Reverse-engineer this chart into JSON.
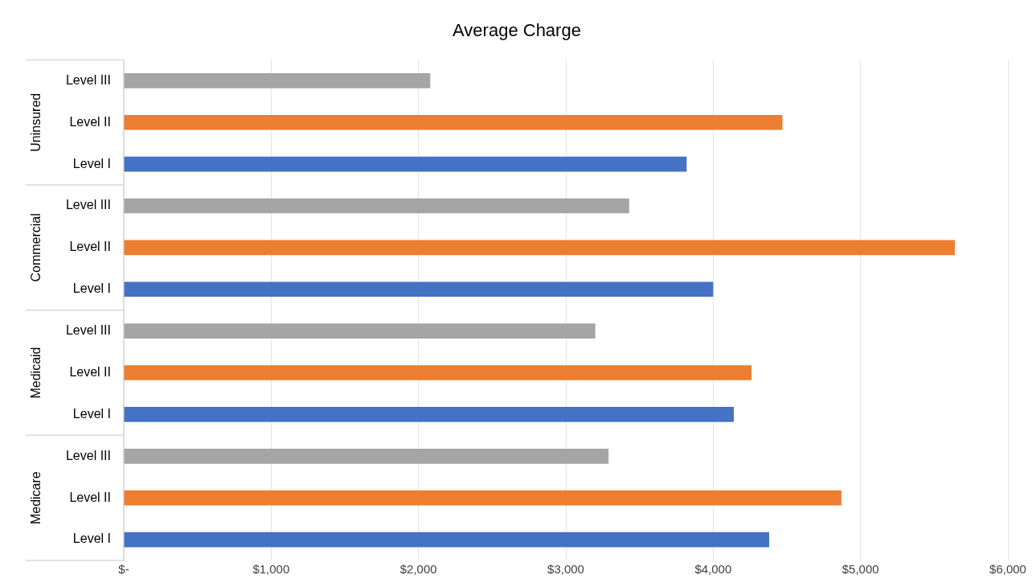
{
  "chart_data": {
    "type": "bar",
    "orientation": "horizontal",
    "title": "Average Charge",
    "categories": [
      "Level III",
      "Level II",
      "Level I",
      "Level III",
      "Level II",
      "Level I",
      "Level III",
      "Level II",
      "Level I",
      "Level III",
      "Level II",
      "Level I"
    ],
    "values": [
      2080,
      4470,
      3820,
      3430,
      5640,
      4000,
      3200,
      4260,
      4140,
      3290,
      4870,
      4380
    ],
    "colors": [
      "#a5a5a5",
      "#ed7d31",
      "#4472c4",
      "#a5a5a5",
      "#ed7d31",
      "#4472c4",
      "#a5a5a5",
      "#ed7d31",
      "#4472c4",
      "#a5a5a5",
      "#ed7d31",
      "#4472c4"
    ],
    "annotations": [
      "Uninsured",
      "Commercial",
      "Medicaid",
      "Medicare"
    ],
    "xlim": [
      0,
      6000
    ],
    "xticks": [
      {
        "value": 0,
        "label": "$-"
      },
      {
        "value": 1000,
        "label": "$1,000"
      },
      {
        "value": 2000,
        "label": "$2,000"
      },
      {
        "value": 3000,
        "label": "$3,000"
      },
      {
        "value": 4000,
        "label": "$4,000"
      },
      {
        "value": 5000,
        "label": "$5,000"
      },
      {
        "value": 6000,
        "label": "$6,000"
      }
    ],
    "grid": "x",
    "legend": false
  }
}
